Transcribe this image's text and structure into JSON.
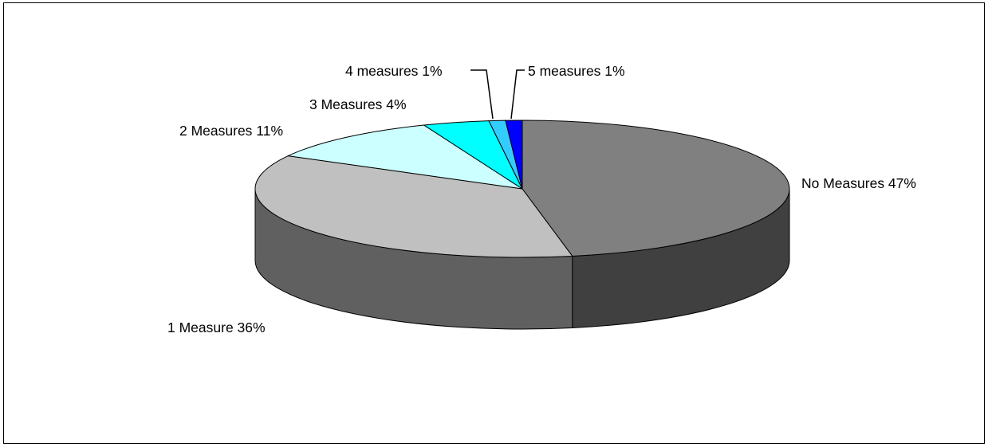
{
  "chart_data": {
    "type": "pie",
    "style": "3d",
    "slices": [
      {
        "label": "No Measures 47%",
        "value": 47,
        "color": "#808080",
        "side_color": "#404040"
      },
      {
        "label": "1 Measure 36%",
        "value": 36,
        "color": "#c0c0c0",
        "side_color": "#606060"
      },
      {
        "label": "2 Measures 11%",
        "value": 11,
        "color": "#ccffff",
        "side_color": "#99cccc"
      },
      {
        "label": "3 Measures 4%",
        "value": 4,
        "color": "#00ffff",
        "side_color": "#00b3b3"
      },
      {
        "label": "4 measures 1%",
        "value": 1,
        "color": "#33ccff",
        "side_color": "#2288aa"
      },
      {
        "label": "5 measures 1%",
        "value": 1,
        "color": "#0000ff",
        "side_color": "#0000aa"
      }
    ],
    "legend": "none"
  }
}
